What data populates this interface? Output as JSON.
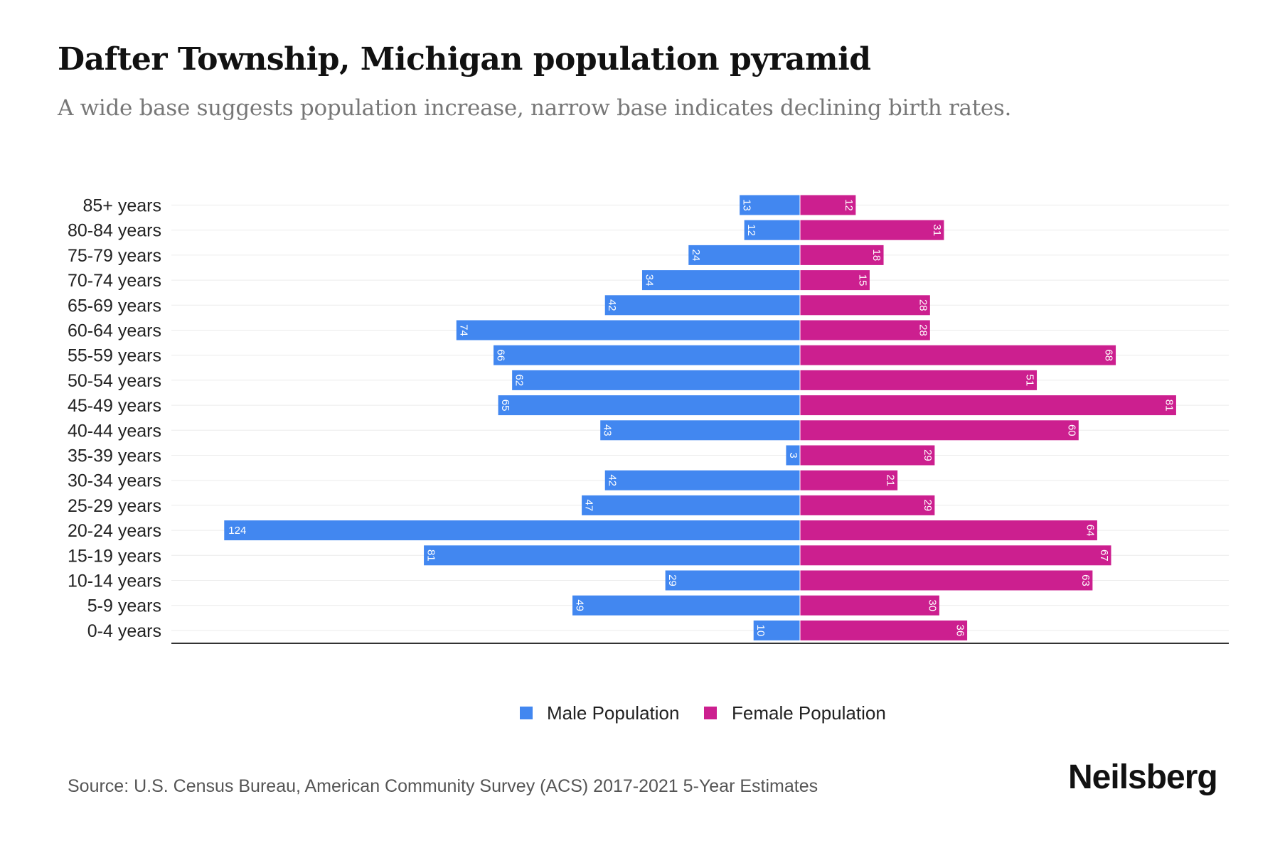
{
  "title": "Dafter Township, Michigan population pyramid",
  "subtitle": "A wide base suggests population increase, narrow base indicates declining birth rates.",
  "source": "Source: U.S. Census Bureau, American Community Survey (ACS) 2017-2021 5-Year Estimates",
  "logo": "Neilsberg",
  "colors": {
    "male": "#4287f0",
    "female": "#cc1f8f"
  },
  "chart_data": {
    "type": "bar",
    "orientation": "horizontal-pyramid",
    "categories": [
      "85+ years",
      "80-84 years",
      "75-79 years",
      "70-74 years",
      "65-69 years",
      "60-64 years",
      "55-59 years",
      "50-54 years",
      "45-49 years",
      "40-44 years",
      "35-39 years",
      "30-34 years",
      "25-29 years",
      "20-24 years",
      "15-19 years",
      "10-14 years",
      "5-9 years",
      "0-4 years"
    ],
    "series": [
      {
        "name": "Male Population",
        "values": [
          13,
          12,
          24,
          34,
          42,
          74,
          66,
          62,
          65,
          43,
          3,
          42,
          47,
          124,
          81,
          29,
          49,
          10
        ]
      },
      {
        "name": "Female Population",
        "values": [
          12,
          31,
          18,
          15,
          28,
          28,
          68,
          51,
          81,
          60,
          29,
          21,
          29,
          64,
          67,
          63,
          30,
          36
        ]
      }
    ],
    "xlim": [
      -135,
      135
    ],
    "grid": true,
    "legend": "bottom-center"
  }
}
